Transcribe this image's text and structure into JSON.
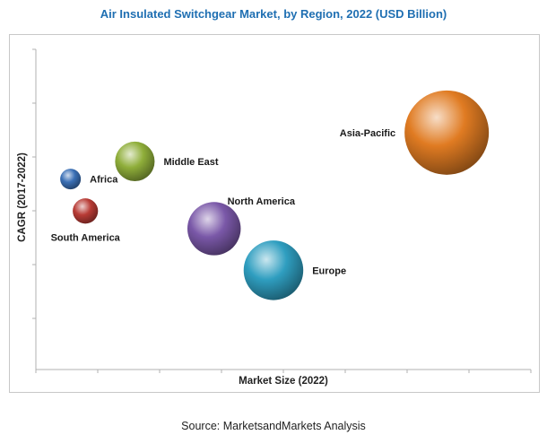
{
  "title": "Air Insulated Switchgear Market, by Region, 2022 (USD Billion)",
  "source": "Source: MarketsandMarkets Analysis",
  "chart_data": {
    "type": "scatter",
    "subtype": "bubble",
    "title": "Air Insulated Switchgear Market, by Region, 2022 (USD Billion)",
    "xlabel": "Market Size (2022)",
    "ylabel": "CAGR (2017-2022)",
    "tick_labels_shown": false,
    "grid": false,
    "legend": "none",
    "points": [
      {
        "name": "Asia-Pacific",
        "x": 8.3,
        "y": 7.4,
        "size": 1.0,
        "color": "#e07b22",
        "label_side": "left"
      },
      {
        "name": "Middle East",
        "x": 2.0,
        "y": 6.5,
        "size": 0.22,
        "color": "#8fae3a",
        "label_side": "right"
      },
      {
        "name": "Africa",
        "x": 0.7,
        "y": 5.95,
        "size": 0.06,
        "color": "#3a6fb5",
        "label_side": "right"
      },
      {
        "name": "South America",
        "x": 1.0,
        "y": 4.95,
        "size": 0.09,
        "color": "#b83b35",
        "label_side": "below"
      },
      {
        "name": "North America",
        "x": 3.6,
        "y": 4.4,
        "size": 0.4,
        "color": "#7a58a8",
        "label_side": "above-right"
      },
      {
        "name": "Europe",
        "x": 4.8,
        "y": 3.1,
        "size": 0.5,
        "color": "#2f9ec0",
        "label_side": "right"
      }
    ],
    "xlim": [
      0,
      10
    ],
    "ylim": [
      0,
      10
    ]
  }
}
